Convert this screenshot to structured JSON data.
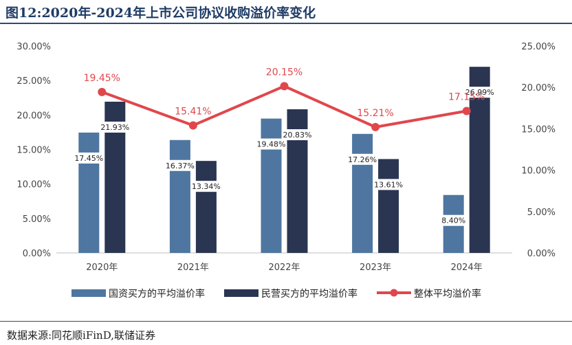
{
  "figure": {
    "title": "图12:2020年-2024年上市公司协议收购溢价率变化",
    "source": "数据来源:同花顺iFinD,联储证券"
  },
  "chart_data": {
    "type": "bar",
    "categories": [
      "2020年",
      "2021年",
      "2022年",
      "2023年",
      "2024年"
    ],
    "series": [
      {
        "name": "国资买方的平均溢价率",
        "kind": "bar",
        "axis": "left",
        "color": "#4e76a0",
        "values": [
          17.45,
          16.37,
          19.48,
          17.26,
          8.4
        ],
        "labels": [
          "17.45%",
          "16.37%",
          "19.48%",
          "17.26%",
          "8.40%"
        ]
      },
      {
        "name": "民营买方的平均溢价率",
        "kind": "bar",
        "axis": "left",
        "color": "#2a3552",
        "values": [
          21.93,
          13.34,
          20.83,
          13.61,
          26.99
        ],
        "labels": [
          "21.93%",
          "13.34%",
          "20.83%",
          "13.61%",
          "26.99%"
        ]
      },
      {
        "name": "整体平均溢价率",
        "kind": "line",
        "axis": "right",
        "color": "#e0474c",
        "values": [
          19.45,
          15.41,
          20.15,
          15.21,
          17.15
        ],
        "labels": [
          "19.45%",
          "15.41%",
          "20.15%",
          "15.21%",
          "17.15%"
        ]
      }
    ],
    "y_left": {
      "min": 0,
      "max": 30,
      "ticks": [
        "0.00%",
        "5.00%",
        "10.00%",
        "15.00%",
        "20.00%",
        "25.00%",
        "30.00%"
      ]
    },
    "y_right": {
      "min": 0,
      "max": 25,
      "ticks": [
        "0.00%",
        "5.00%",
        "10.00%",
        "15.00%",
        "20.00%",
        "25.00%"
      ]
    },
    "grid": false,
    "legend": "bottom"
  }
}
